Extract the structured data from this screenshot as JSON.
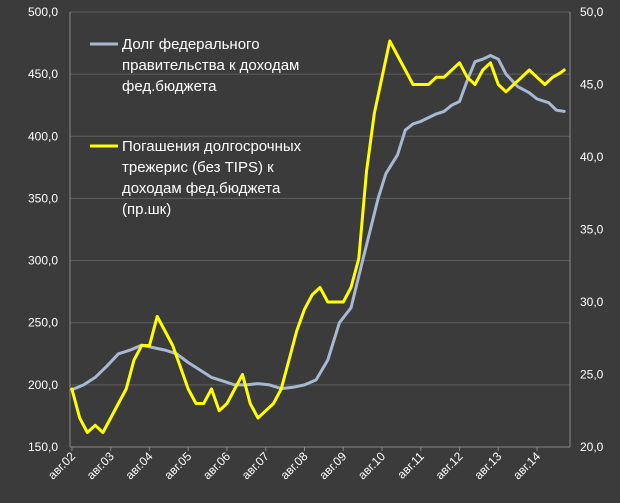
{
  "chart_data": {
    "type": "line",
    "x_tick_labels": [
      "авг.02",
      "авг.03",
      "авг.04",
      "авг.05",
      "авг.06",
      "авг.07",
      "авг.08",
      "авг.09",
      "авг.10",
      "авг.11",
      "авг.12",
      "авг.13",
      "авг.14"
    ],
    "left_axis": {
      "ylim": [
        150,
        500
      ],
      "ticks": [
        "150,0",
        "200,0",
        "250,0",
        "300,0",
        "350,0",
        "400,0",
        "450,0",
        "500,0"
      ]
    },
    "right_axis": {
      "ylim": [
        20,
        50
      ],
      "ticks": [
        "20,0",
        "25,0",
        "30,0",
        "35,0",
        "40,0",
        "45,0",
        "50,0"
      ]
    },
    "grid": true,
    "legend_position": "top-left",
    "series": [
      {
        "name": "Долг федерального правительства к доходам фед.бюджета",
        "legend_lines": [
          "Долг федерального",
          "правительства к доходам",
          "фед.бюджета"
        ],
        "axis": "left",
        "color": "#a8b8d0",
        "x": [
          0,
          0.3,
          0.6,
          0.9,
          1.2,
          1.5,
          1.8,
          2.1,
          2.4,
          2.7,
          3,
          3.3,
          3.6,
          3.9,
          4.2,
          4.5,
          4.8,
          5.1,
          5.4,
          5.7,
          6,
          6.3,
          6.6,
          6.9,
          7.2,
          7.5,
          7.7,
          7.9,
          8.1,
          8.4,
          8.6,
          8.8,
          9,
          9.2,
          9.4,
          9.6,
          9.8,
          10,
          10.2,
          10.4,
          10.6,
          10.8,
          11,
          11.2,
          11.5,
          11.8,
          12,
          12.3,
          12.5,
          12.7
        ],
        "values": [
          196,
          200,
          206,
          215,
          225,
          228,
          232,
          230,
          228,
          225,
          218,
          212,
          206,
          203,
          200,
          200,
          201,
          200,
          197,
          198,
          200,
          204,
          220,
          250,
          262,
          300,
          325,
          350,
          370,
          385,
          405,
          410,
          412,
          415,
          418,
          420,
          425,
          428,
          445,
          460,
          462,
          465,
          462,
          450,
          440,
          435,
          430,
          427,
          421,
          420
        ]
      },
      {
        "name": "Погашения долгосрочных трежерис (без TIPS) к доходам фед.бюджета (пр.шк)",
        "legend_lines": [
          "Погашения долгосрочных",
          "трежерис (без TIPS) к",
          "доходам фед.бюджета",
          "(пр.шк)"
        ],
        "axis": "right",
        "color": "#ffff00",
        "x": [
          0,
          0.2,
          0.4,
          0.6,
          0.8,
          1,
          1.2,
          1.4,
          1.6,
          1.8,
          2,
          2.2,
          2.4,
          2.6,
          2.8,
          3,
          3.2,
          3.4,
          3.6,
          3.8,
          4,
          4.2,
          4.4,
          4.6,
          4.8,
          5,
          5.2,
          5.4,
          5.6,
          5.8,
          6,
          6.2,
          6.4,
          6.6,
          6.8,
          7,
          7.2,
          7.4,
          7.6,
          7.8,
          8,
          8.2,
          8.4,
          8.6,
          8.8,
          9,
          9.2,
          9.4,
          9.6,
          9.8,
          10,
          10.2,
          10.4,
          10.6,
          10.8,
          11,
          11.2,
          11.4,
          11.6,
          11.8,
          12,
          12.2,
          12.4,
          12.6,
          12.7
        ],
        "values": [
          24,
          22,
          21,
          21.5,
          21,
          22,
          23,
          24,
          26,
          27,
          27,
          29,
          28,
          27,
          25.5,
          24,
          23,
          23,
          24,
          22.5,
          23,
          24,
          25,
          23,
          22,
          22.5,
          23,
          24,
          26,
          28,
          29.5,
          30.5,
          31,
          30,
          30,
          30,
          31,
          33,
          39,
          43,
          45.5,
          48,
          47,
          46,
          45,
          45,
          45,
          45.5,
          45.5,
          46,
          46.5,
          45.5,
          45,
          46,
          46.5,
          45,
          44.5,
          45,
          45.5,
          46,
          45.5,
          45,
          45.5,
          45.8,
          46
        ]
      }
    ]
  }
}
